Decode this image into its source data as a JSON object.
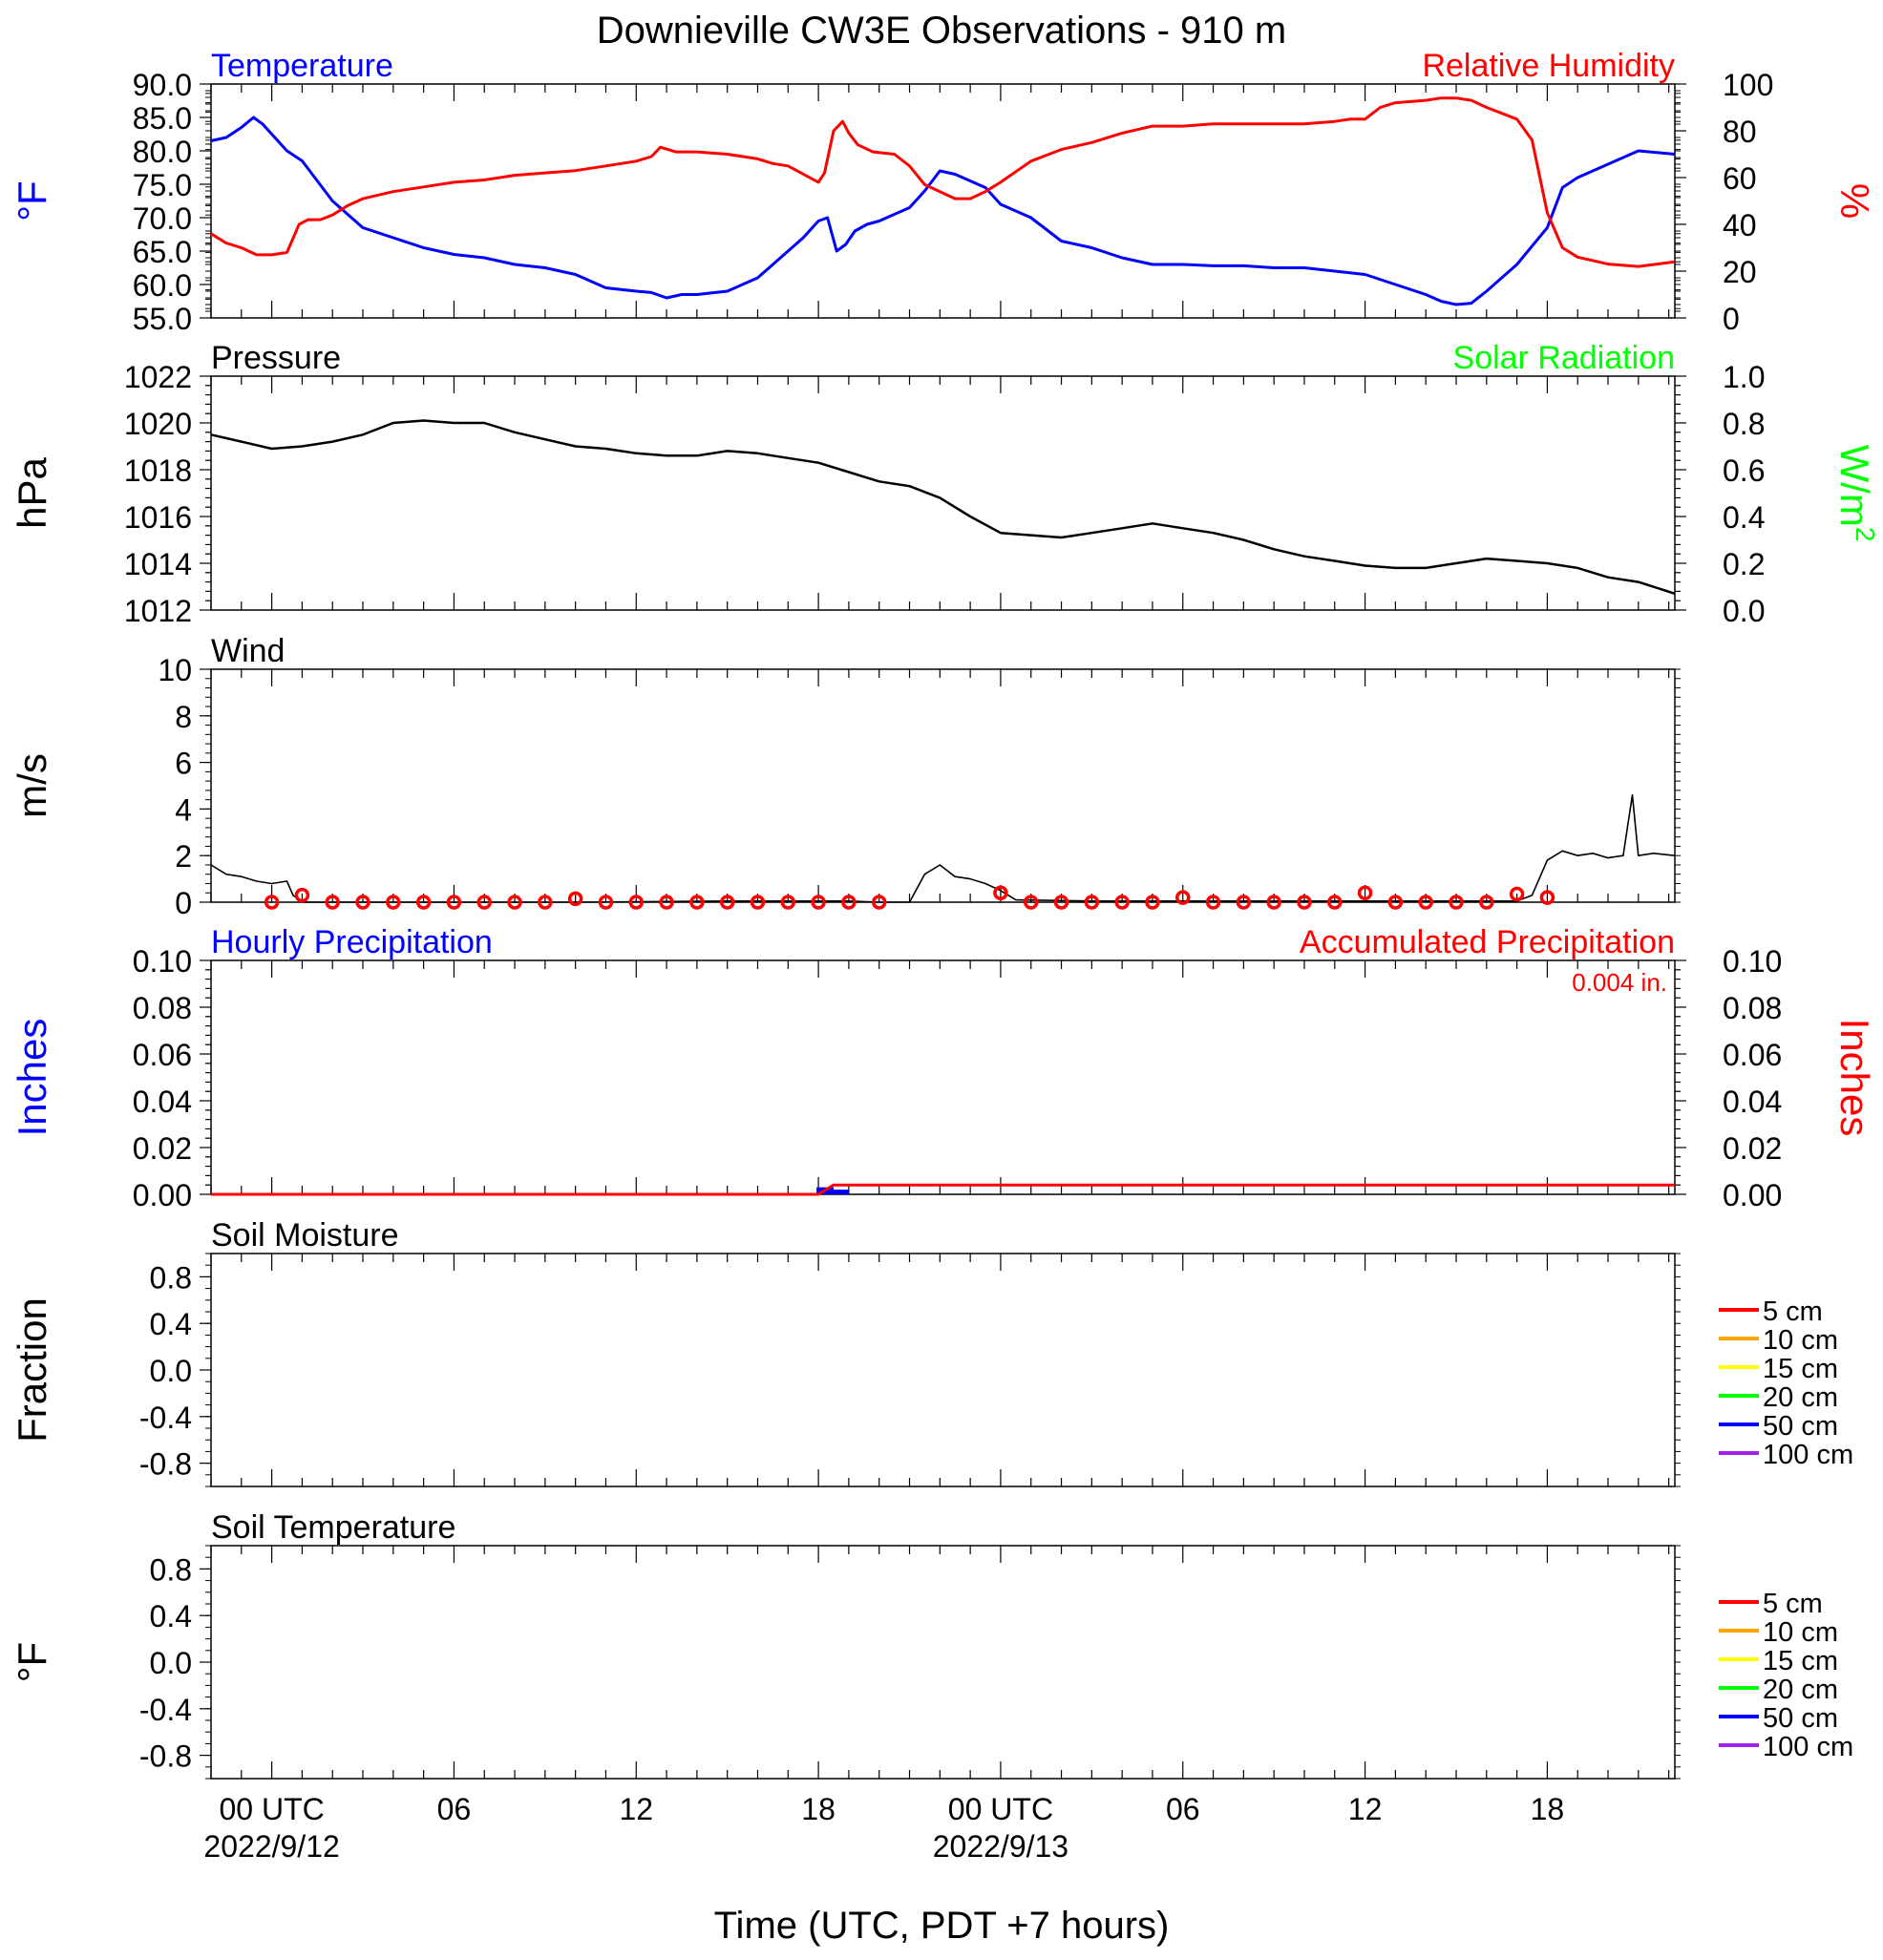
{
  "title": "Downieville CW3E Observations - 910 m",
  "xaxis": {
    "label": "Time (UTC, PDT +7 hours)",
    "ticks": [
      {
        "t": 0,
        "label": "00 UTC",
        "date": "2022/9/12"
      },
      {
        "t": 6,
        "label": "06",
        "date": ""
      },
      {
        "t": 12,
        "label": "12",
        "date": ""
      },
      {
        "t": 18,
        "label": "18",
        "date": ""
      },
      {
        "t": 24,
        "label": "00 UTC",
        "date": "2022/9/13"
      },
      {
        "t": 30,
        "label": "06",
        "date": ""
      },
      {
        "t": 36,
        "label": "12",
        "date": ""
      },
      {
        "t": 42,
        "label": "18",
        "date": ""
      }
    ],
    "range": [
      -2,
      46.2
    ]
  },
  "chart_data": [
    {
      "panel": "temperature-humidity",
      "type": "line",
      "left_title": "Temperature",
      "right_title": "Relative Humidity",
      "left_unit": "°F",
      "right_unit": "%",
      "left_ylim": [
        55,
        90
      ],
      "right_ylim": [
        0,
        100
      ],
      "left_ticks": [
        "90.0",
        "85.0",
        "80.0",
        "75.0",
        "70.0",
        "65.0",
        "60.0",
        "55.0"
      ],
      "right_ticks": [
        "100",
        "80",
        "60",
        "40",
        "20",
        "0"
      ],
      "colors": {
        "temperature": "#0000ff",
        "humidity": "#ff0000"
      },
      "series": [
        {
          "name": "Temperature",
          "axis": "left",
          "x": [
            -2,
            -1.5,
            -1,
            -0.6,
            -0.3,
            0,
            0.5,
            1,
            1.5,
            2,
            3,
            4,
            5,
            6,
            7,
            8,
            9,
            10,
            11,
            12,
            12.5,
            13,
            13.5,
            14,
            15,
            16,
            17,
            17.5,
            18,
            18.3,
            18.6,
            18.9,
            19.2,
            19.6,
            20,
            21,
            21.5,
            22,
            22.5,
            23,
            23.5,
            24,
            25,
            26,
            27,
            28,
            29,
            30,
            31,
            32,
            33,
            34,
            35,
            36,
            37,
            38,
            38.5,
            39,
            39.5,
            40,
            41,
            42,
            42.5,
            43,
            44,
            45,
            46.2
          ],
          "y": [
            81.5,
            82,
            83.5,
            85,
            84,
            82.5,
            80,
            78.5,
            75.5,
            72.5,
            68.5,
            67,
            65.5,
            64.5,
            64,
            63,
            62.5,
            61.5,
            59.5,
            59,
            58.8,
            58,
            58.5,
            58.5,
            59,
            61,
            65,
            67,
            69.5,
            70,
            65,
            66,
            68,
            69,
            69.5,
            71.5,
            74,
            77,
            76.5,
            75.5,
            74.5,
            72,
            70,
            66.5,
            65.5,
            64,
            63,
            63,
            62.8,
            62.8,
            62.5,
            62.5,
            62,
            61.5,
            60,
            58.5,
            57.5,
            57,
            57.2,
            59,
            63,
            68.5,
            74.5,
            76,
            78,
            80,
            79.5
          ]
        },
        {
          "name": "Relative Humidity",
          "axis": "right",
          "x": [
            -2,
            -1.5,
            -1,
            -0.5,
            0,
            0.5,
            0.7,
            0.9,
            1.2,
            1.6,
            2,
            2.5,
            3,
            4,
            5,
            6,
            7,
            8,
            9,
            10,
            11,
            12,
            12.5,
            12.8,
            13.3,
            14,
            15,
            16,
            16.5,
            17,
            18,
            18.2,
            18.5,
            18.8,
            19,
            19.3,
            19.8,
            20.5,
            21,
            21.5,
            22,
            22.5,
            23,
            23.5,
            24,
            25,
            26,
            27,
            28,
            29,
            30,
            31,
            32,
            33,
            34,
            35,
            35.5,
            36,
            36.5,
            37,
            38,
            38.5,
            39,
            39.5,
            40,
            41,
            41.5,
            42,
            42.5,
            43,
            44,
            45,
            46.2
          ],
          "y": [
            36,
            32,
            30,
            27,
            27,
            28,
            34,
            40,
            42,
            42,
            44,
            48,
            51,
            54,
            56,
            58,
            59,
            61,
            62,
            63,
            65,
            67,
            69,
            73,
            71,
            71,
            70,
            68,
            66,
            65,
            58,
            62,
            80,
            84,
            79,
            74,
            71,
            70,
            65,
            57,
            54,
            51,
            51,
            54,
            58,
            67,
            72,
            75,
            79,
            82,
            82,
            83,
            83,
            83,
            83,
            84,
            85,
            85,
            90,
            92,
            93,
            94,
            94,
            93,
            90,
            85,
            76,
            45,
            30,
            26,
            23,
            22,
            24
          ]
        }
      ]
    },
    {
      "panel": "pressure-solar",
      "type": "line",
      "left_title": "Pressure",
      "right_title": "Solar Radiation",
      "left_unit": "hPa",
      "right_unit": "W/m",
      "right_unit_sup": "2",
      "left_ylim": [
        1012,
        1022
      ],
      "right_ylim": [
        0,
        1
      ],
      "left_ticks": [
        "1022",
        "1020",
        "1018",
        "1016",
        "1014",
        "1012"
      ],
      "right_ticks": [
        "1.0",
        "0.8",
        "0.6",
        "0.4",
        "0.2",
        "0.0"
      ],
      "colors": {
        "pressure": "#000000",
        "solar": "#00ff00"
      },
      "series": [
        {
          "name": "Pressure",
          "axis": "left",
          "x": [
            -2,
            -1,
            0,
            1,
            2,
            3,
            4,
            5,
            6,
            7,
            8,
            9,
            10,
            11,
            12,
            13,
            14,
            15,
            16,
            17,
            18,
            19,
            20,
            21,
            22,
            23,
            24,
            25,
            26,
            27,
            28,
            29,
            30,
            31,
            32,
            33,
            34,
            35,
            36,
            37,
            38,
            39,
            40,
            41,
            42,
            43,
            44,
            45,
            46.2
          ],
          "y": [
            1019.5,
            1019.2,
            1018.9,
            1019.0,
            1019.2,
            1019.5,
            1020.0,
            1020.1,
            1020.0,
            1020.0,
            1019.6,
            1019.3,
            1019.0,
            1018.9,
            1018.7,
            1018.6,
            1018.6,
            1018.8,
            1018.7,
            1018.5,
            1018.3,
            1017.9,
            1017.5,
            1017.3,
            1016.8,
            1016.0,
            1015.3,
            1015.2,
            1015.1,
            1015.3,
            1015.5,
            1015.7,
            1015.5,
            1015.3,
            1015.0,
            1014.6,
            1014.3,
            1014.1,
            1013.9,
            1013.8,
            1013.8,
            1014.0,
            1014.2,
            1014.1,
            1014.0,
            1013.8,
            1013.4,
            1013.2,
            1012.7
          ]
        }
      ]
    },
    {
      "panel": "wind",
      "type": "line",
      "left_title": "Wind",
      "left_unit": "m/s",
      "left_ylim": [
        0,
        10
      ],
      "left_ticks": [
        "10",
        "8",
        "6",
        "4",
        "2",
        "0"
      ],
      "colors": {
        "speed": "#000000",
        "markers": "#ff0000"
      },
      "series": [
        {
          "name": "Wind",
          "axis": "left",
          "x": [
            -2,
            -1.5,
            -1,
            -0.5,
            0,
            0.5,
            0.7,
            1,
            5,
            10,
            15,
            19,
            20,
            21,
            21.5,
            22,
            22.5,
            23,
            23.5,
            24,
            24.5,
            27,
            30,
            35,
            40,
            41,
            41.5,
            42,
            42.5,
            43,
            43.5,
            44,
            44.5,
            44.8,
            45,
            45.5,
            46.2
          ],
          "y": [
            1.6,
            1.2,
            1.1,
            0.9,
            0.8,
            0.9,
            0.3,
            0,
            0,
            0,
            0.05,
            0.05,
            0,
            0,
            1.2,
            1.6,
            1.1,
            1.0,
            0.8,
            0.5,
            0.1,
            0.05,
            0.05,
            0.05,
            0.05,
            0.05,
            0.3,
            1.8,
            2.2,
            2.0,
            2.1,
            1.9,
            2.0,
            4.6,
            2.0,
            2.1,
            2.0
          ]
        },
        {
          "name": "",
          "axis": "left",
          "style": "markers",
          "x": [
            0,
            1,
            2,
            3,
            4,
            5,
            6,
            7,
            8,
            9,
            10,
            11,
            12,
            13,
            14,
            15,
            16,
            17,
            18,
            19,
            20,
            24,
            25,
            26,
            27,
            28,
            29,
            30,
            31,
            32,
            33,
            34,
            35,
            36,
            37,
            38,
            39,
            40,
            41,
            42
          ],
          "y": [
            0,
            0.3,
            0,
            0,
            0,
            0,
            0,
            0,
            0,
            0,
            0.15,
            0,
            0,
            0,
            0,
            0,
            0,
            0,
            0,
            0,
            0,
            0.4,
            0,
            0,
            0,
            0,
            0,
            0.2,
            0,
            0,
            0,
            0,
            0,
            0.4,
            0,
            0,
            0,
            0,
            0.35,
            0.2
          ]
        }
      ]
    },
    {
      "panel": "precipitation",
      "type": "bar",
      "left_title": "Hourly Precipitation",
      "right_title": "Accumulated Precipitation",
      "accumulated_label": "0.004 in.",
      "left_unit": "Inches",
      "right_unit": "Inches",
      "left_ylim": [
        0,
        0.1
      ],
      "right_ylim": [
        0,
        0.1
      ],
      "left_ticks": [
        "0.10",
        "0.08",
        "0.06",
        "0.04",
        "0.02",
        "0.00"
      ],
      "right_ticks": [
        "0.10",
        "0.08",
        "0.06",
        "0.04",
        "0.02",
        "0.00"
      ],
      "colors": {
        "hourly": "#0000ff",
        "accumulated": "#ff0000"
      },
      "series": [
        {
          "name": "Hourly Precipitation",
          "axis": "left",
          "x": [
            18,
            18.5
          ],
          "values": [
            0.003,
            0.002
          ]
        },
        {
          "name": "Accumulated Precipitation",
          "axis": "right",
          "x": [
            -2,
            18,
            18.5,
            46.2
          ],
          "y": [
            0,
            0,
            0.004,
            0.004
          ]
        }
      ]
    },
    {
      "panel": "soil-moisture",
      "type": "line",
      "left_title": "Soil Moisture",
      "left_unit": "Fraction",
      "left_ylim": [
        -1,
        1
      ],
      "left_ticks": [
        "0.8",
        "0.4",
        "0.0",
        "-0.4",
        "-0.8"
      ],
      "legend": [
        {
          "label": "5 cm",
          "color": "#ff0000"
        },
        {
          "label": "10 cm",
          "color": "#ffa500"
        },
        {
          "label": "15 cm",
          "color": "#ffff00"
        },
        {
          "label": "20 cm",
          "color": "#00ff00"
        },
        {
          "label": "50 cm",
          "color": "#0000ff"
        },
        {
          "label": "100 cm",
          "color": "#a020f0"
        }
      ],
      "series": []
    },
    {
      "panel": "soil-temperature",
      "type": "line",
      "left_title": "Soil Temperature",
      "left_unit": "°F",
      "left_ylim": [
        -1,
        1
      ],
      "left_ticks": [
        "0.8",
        "0.4",
        "0.0",
        "-0.4",
        "-0.8"
      ],
      "legend": [
        {
          "label": "5 cm",
          "color": "#ff0000"
        },
        {
          "label": "10 cm",
          "color": "#ffa500"
        },
        {
          "label": "15 cm",
          "color": "#ffff00"
        },
        {
          "label": "20 cm",
          "color": "#00ff00"
        },
        {
          "label": "50 cm",
          "color": "#0000ff"
        },
        {
          "label": "100 cm",
          "color": "#a020f0"
        }
      ],
      "series": []
    }
  ]
}
